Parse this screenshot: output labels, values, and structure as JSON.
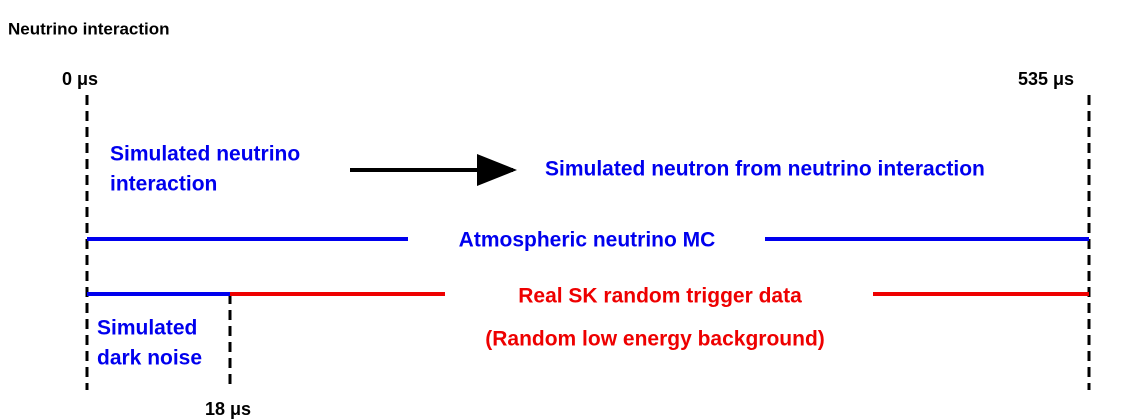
{
  "header": {
    "title": "Neutrino interaction"
  },
  "time_markers": [
    "0 μs",
    "535 μs",
    "18 μs"
  ],
  "nodes": [
    {
      "lines": [
        "Simulated neutrino",
        "interaction"
      ]
    },
    {
      "lines": [
        "Simulated neutron from neutrino interaction"
      ]
    },
    {
      "lines": [
        "Atmospheric neutrino MC"
      ]
    },
    {
      "lines": [
        "Real SK random trigger data",
        "(Random low energy background)"
      ]
    },
    {
      "lines": [
        "Simulated",
        "dark noise"
      ]
    }
  ]
}
